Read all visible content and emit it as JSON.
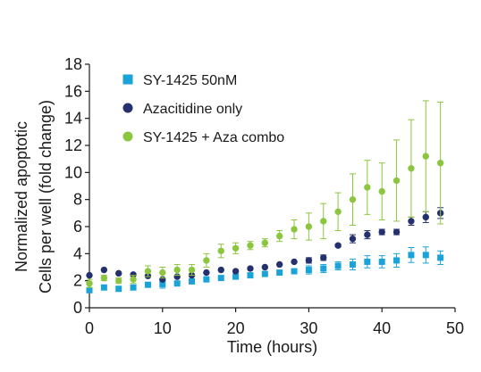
{
  "chart_data": {
    "type": "scatter",
    "xlabel": "Time (hours)",
    "ylabel": [
      "Normalized apoptotic",
      "Cells per well (fold change)"
    ],
    "xlim": [
      0,
      50
    ],
    "ylim": [
      0,
      18
    ],
    "xticks": [
      0,
      10,
      20,
      30,
      40,
      50
    ],
    "yticks": [
      0,
      2,
      4,
      6,
      8,
      10,
      12,
      14,
      16,
      18
    ],
    "grid": false,
    "legend_position": "top-left",
    "series": [
      {
        "name": "SY-1425 50nM",
        "marker": "square",
        "color": "#1aa3d9",
        "x": [
          0,
          2,
          4,
          6,
          8,
          10,
          12,
          14,
          16,
          18,
          20,
          22,
          24,
          26,
          28,
          30,
          32,
          34,
          36,
          38,
          40,
          42,
          44,
          46,
          48
        ],
        "y": [
          1.3,
          1.5,
          1.4,
          1.5,
          1.7,
          1.75,
          1.8,
          1.95,
          2.1,
          2.2,
          2.3,
          2.4,
          2.5,
          2.6,
          2.7,
          2.8,
          2.9,
          3.1,
          3.2,
          3.4,
          3.4,
          3.5,
          3.9,
          3.9,
          3.7
        ],
        "err": [
          0,
          0,
          0,
          0,
          0,
          0.3,
          0,
          0,
          0,
          0,
          0,
          0,
          0,
          0,
          0,
          0.3,
          0.3,
          0.3,
          0.4,
          0.45,
          0.45,
          0.5,
          0.55,
          0.6,
          0.5
        ]
      },
      {
        "name": "Azacitidine only",
        "marker": "circle",
        "color": "#25306e",
        "x": [
          0,
          2,
          4,
          6,
          8,
          10,
          12,
          14,
          16,
          18,
          20,
          22,
          24,
          26,
          28,
          30,
          32,
          34,
          36,
          38,
          40,
          42,
          44,
          46,
          48
        ],
        "y": [
          2.4,
          2.8,
          2.55,
          2.45,
          2.35,
          2.1,
          2.3,
          2.4,
          2.6,
          2.8,
          2.7,
          2.9,
          3.0,
          3.2,
          3.4,
          3.5,
          3.7,
          4.6,
          5.1,
          5.4,
          5.6,
          5.6,
          6.4,
          6.7,
          7.0
        ],
        "err": [
          0,
          0,
          0,
          0,
          0,
          0,
          0,
          0,
          0,
          0,
          0,
          0,
          0,
          0,
          0,
          0.2,
          0.2,
          0.1,
          0.3,
          0.3,
          0.2,
          0.2,
          0.3,
          0.4,
          0.4
        ]
      },
      {
        "name": "SY-1425 + Aza combo",
        "marker": "circle",
        "color": "#8cc63f",
        "x": [
          0,
          2,
          4,
          6,
          8,
          10,
          12,
          14,
          16,
          18,
          20,
          22,
          24,
          26,
          28,
          30,
          32,
          34,
          36,
          38,
          40,
          42,
          44,
          46,
          48
        ],
        "y": [
          1.8,
          2.2,
          2.0,
          2.1,
          2.7,
          2.6,
          2.8,
          2.8,
          3.5,
          4.2,
          4.4,
          4.6,
          4.8,
          5.3,
          5.8,
          6.0,
          6.4,
          7.1,
          8.0,
          8.9,
          8.6,
          9.4,
          10.3,
          11.2,
          10.7
        ],
        "err": [
          0.3,
          0.2,
          0.2,
          0.3,
          0.4,
          0.4,
          0.4,
          0.4,
          0.5,
          0.5,
          0.4,
          0.3,
          0.3,
          0.4,
          0.7,
          1.0,
          1.3,
          1.4,
          1.9,
          2.0,
          2.1,
          3.0,
          3.6,
          4.1,
          4.5
        ]
      }
    ]
  }
}
